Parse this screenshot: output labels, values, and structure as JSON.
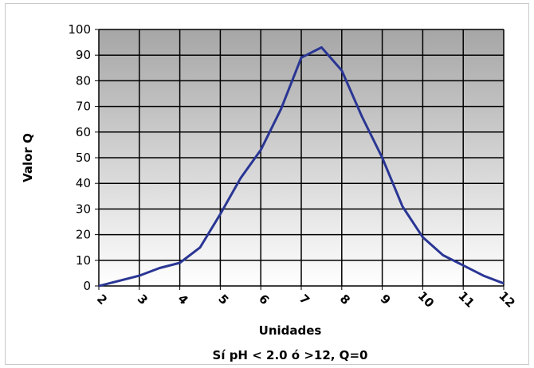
{
  "chart_data": {
    "type": "line",
    "xlabel": "Unidades",
    "ylabel": "Valor Q",
    "note": "Sí pH < 2.0 ó >12, Q=0",
    "xlim": [
      2,
      12
    ],
    "ylim": [
      0,
      100
    ],
    "x_ticks": [
      "2",
      "3",
      "4",
      "5",
      "6",
      "7",
      "8",
      "9",
      "10",
      "11",
      "12"
    ],
    "y_ticks": [
      "0",
      "10",
      "20",
      "30",
      "40",
      "50",
      "60",
      "70",
      "80",
      "90",
      "100"
    ],
    "grid": true,
    "series": [
      {
        "color": "#2a3694",
        "points": [
          [
            2.0,
            0
          ],
          [
            2.5,
            2
          ],
          [
            3.0,
            4
          ],
          [
            3.5,
            7
          ],
          [
            4.0,
            9
          ],
          [
            4.5,
            15
          ],
          [
            5.0,
            28
          ],
          [
            5.5,
            42
          ],
          [
            6.0,
            53
          ],
          [
            6.5,
            69
          ],
          [
            7.0,
            89
          ],
          [
            7.5,
            93
          ],
          [
            8.0,
            84
          ],
          [
            8.5,
            66
          ],
          [
            9.0,
            50
          ],
          [
            9.5,
            31
          ],
          [
            10.0,
            19
          ],
          [
            10.5,
            12
          ],
          [
            11.0,
            8
          ],
          [
            11.5,
            4
          ],
          [
            12.0,
            1
          ]
        ]
      }
    ],
    "plot_background": "gradient grey to white"
  }
}
